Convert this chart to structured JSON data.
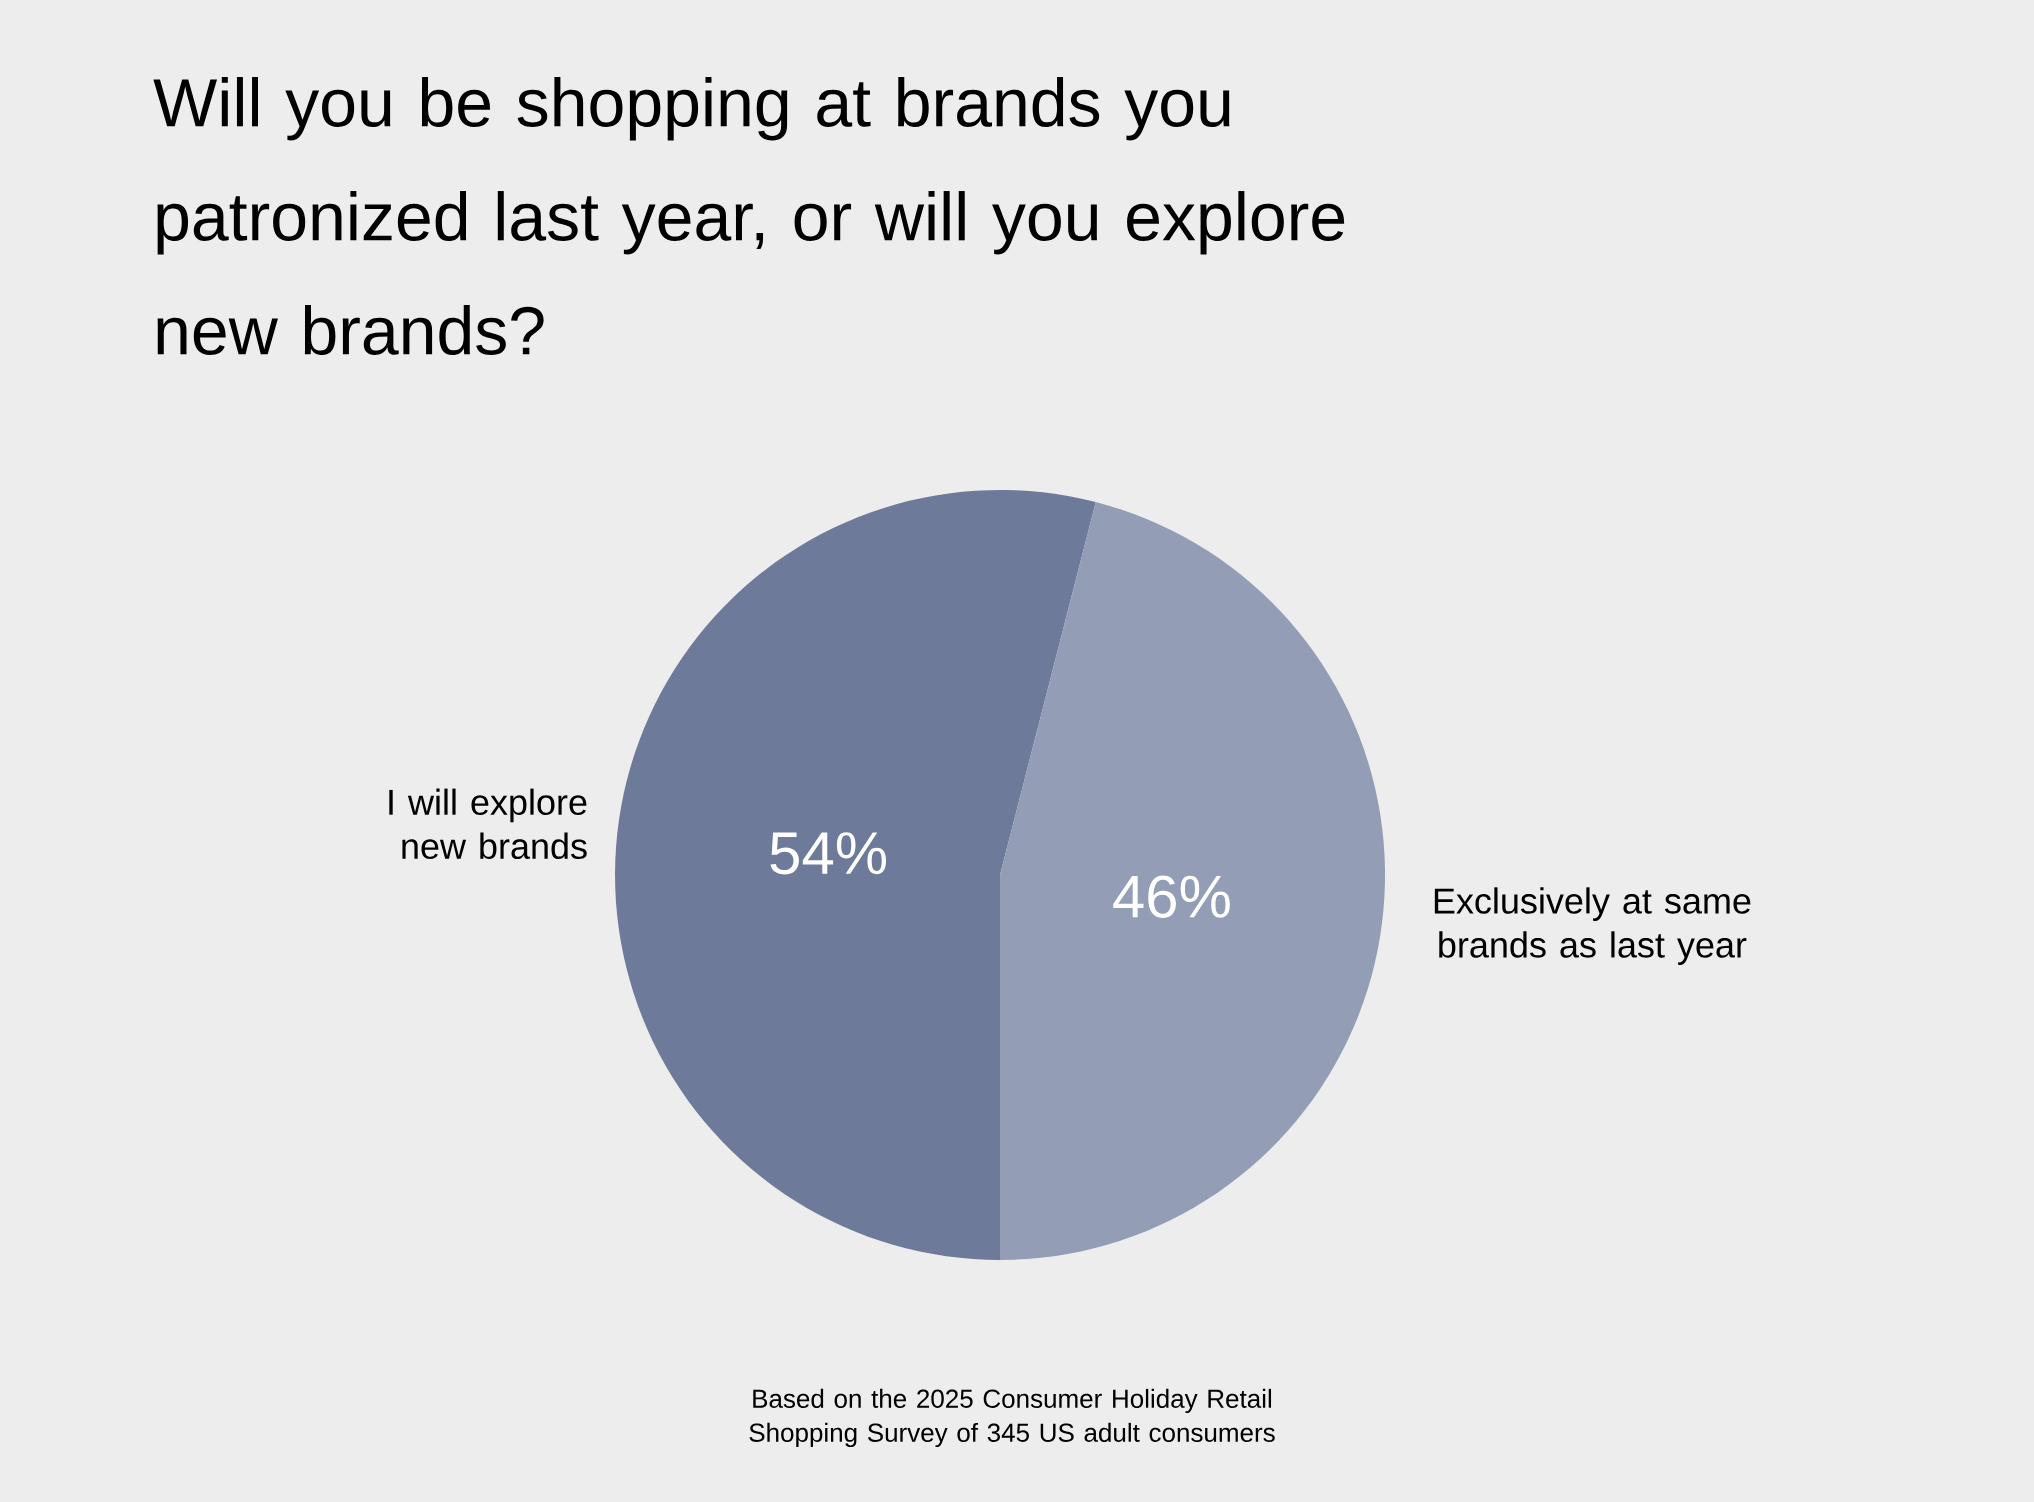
{
  "chart_data": {
    "type": "pie",
    "title": "Will you be shopping at brands you patronized last year, or will you explore new brands?",
    "categories": [
      "I will explore new brands",
      "Exclusively at same brands as last year"
    ],
    "values": [
      54,
      46
    ],
    "colors": [
      "#6e7a99",
      "#939db6"
    ],
    "value_labels": [
      "54%",
      "46%"
    ],
    "annotations": [
      "Based on the 2025 Consumer Holiday Retail Shopping Survey of 345 US adult consumers"
    ]
  }
}
